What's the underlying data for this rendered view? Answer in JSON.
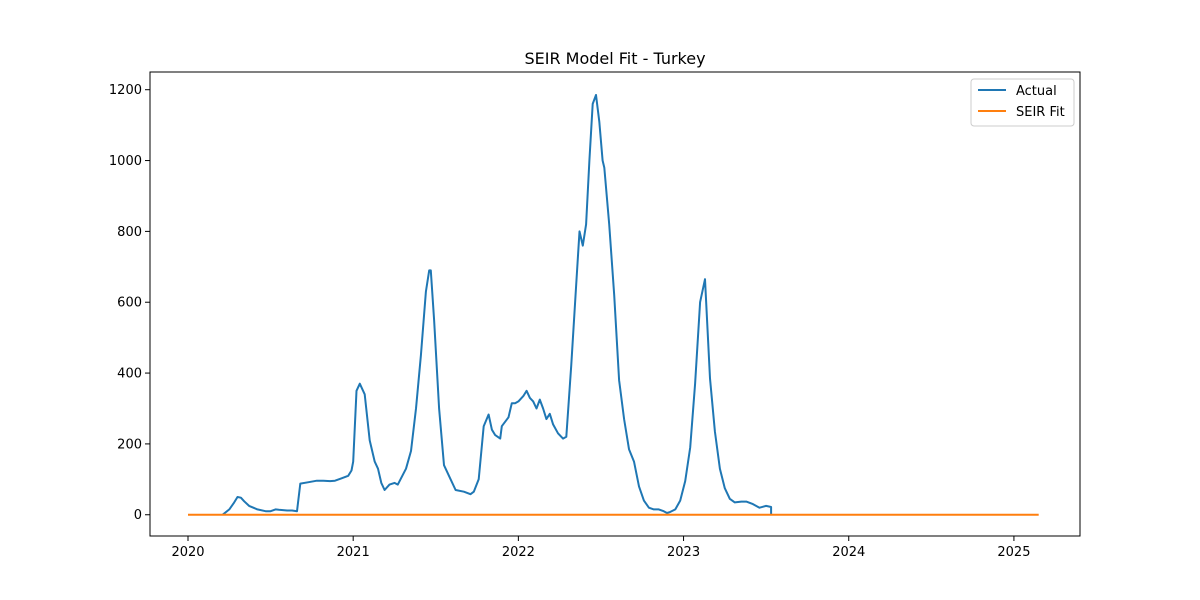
{
  "chart_data": {
    "type": "line",
    "title": "SEIR Model Fit - Turkey",
    "xlabel": "",
    "ylabel": "",
    "x_ticks": [
      "2020",
      "2021",
      "2022",
      "2023",
      "2024",
      "2025"
    ],
    "y_ticks": [
      "0",
      "200",
      "400",
      "600",
      "800",
      "1000",
      "1200"
    ],
    "xlim": [
      2019.77,
      2025.4
    ],
    "ylim": [
      -60,
      1250
    ],
    "legend_position": "top-right",
    "grid": false,
    "series": [
      {
        "name": "Actual",
        "color": "#1f77b4",
        "points": [
          [
            2020.21,
            0
          ],
          [
            2020.25,
            15
          ],
          [
            2020.28,
            35
          ],
          [
            2020.3,
            50
          ],
          [
            2020.32,
            48
          ],
          [
            2020.34,
            38
          ],
          [
            2020.37,
            25
          ],
          [
            2020.42,
            15
          ],
          [
            2020.47,
            10
          ],
          [
            2020.5,
            10
          ],
          [
            2020.53,
            15
          ],
          [
            2020.55,
            14
          ],
          [
            2020.6,
            12
          ],
          [
            2020.63,
            12
          ],
          [
            2020.66,
            10
          ],
          [
            2020.68,
            88
          ],
          [
            2020.73,
            92
          ],
          [
            2020.78,
            96
          ],
          [
            2020.82,
            96
          ],
          [
            2020.86,
            95
          ],
          [
            2020.89,
            96
          ],
          [
            2020.93,
            103
          ],
          [
            2020.97,
            110
          ],
          [
            2020.99,
            125
          ],
          [
            2021.0,
            150
          ],
          [
            2021.02,
            350
          ],
          [
            2021.04,
            370
          ],
          [
            2021.07,
            340
          ],
          [
            2021.1,
            210
          ],
          [
            2021.13,
            150
          ],
          [
            2021.15,
            130
          ],
          [
            2021.17,
            90
          ],
          [
            2021.19,
            70
          ],
          [
            2021.22,
            85
          ],
          [
            2021.25,
            90
          ],
          [
            2021.27,
            85
          ],
          [
            2021.32,
            130
          ],
          [
            2021.35,
            180
          ],
          [
            2021.38,
            300
          ],
          [
            2021.41,
            450
          ],
          [
            2021.44,
            630
          ],
          [
            2021.46,
            690
          ],
          [
            2021.47,
            690
          ],
          [
            2021.49,
            550
          ],
          [
            2021.52,
            300
          ],
          [
            2021.55,
            140
          ],
          [
            2021.59,
            100
          ],
          [
            2021.62,
            70
          ],
          [
            2021.67,
            65
          ],
          [
            2021.71,
            58
          ],
          [
            2021.73,
            65
          ],
          [
            2021.76,
            100
          ],
          [
            2021.79,
            250
          ],
          [
            2021.82,
            283
          ],
          [
            2021.84,
            240
          ],
          [
            2021.86,
            225
          ],
          [
            2021.89,
            215
          ],
          [
            2021.9,
            250
          ],
          [
            2021.94,
            275
          ],
          [
            2021.96,
            315
          ],
          [
            2021.98,
            315
          ],
          [
            2022.0,
            320
          ],
          [
            2022.03,
            335
          ],
          [
            2022.05,
            350
          ],
          [
            2022.07,
            330
          ],
          [
            2022.09,
            320
          ],
          [
            2022.11,
            300
          ],
          [
            2022.13,
            325
          ],
          [
            2022.15,
            300
          ],
          [
            2022.17,
            270
          ],
          [
            2022.19,
            285
          ],
          [
            2022.21,
            255
          ],
          [
            2022.24,
            230
          ],
          [
            2022.27,
            215
          ],
          [
            2022.29,
            220
          ],
          [
            2022.32,
            420
          ],
          [
            2022.35,
            650
          ],
          [
            2022.37,
            800
          ],
          [
            2022.39,
            760
          ],
          [
            2022.41,
            820
          ],
          [
            2022.43,
            1000
          ],
          [
            2022.45,
            1160
          ],
          [
            2022.47,
            1185
          ],
          [
            2022.49,
            1110
          ],
          [
            2022.51,
            1000
          ],
          [
            2022.52,
            980
          ],
          [
            2022.55,
            820
          ],
          [
            2022.58,
            620
          ],
          [
            2022.61,
            380
          ],
          [
            2022.64,
            270
          ],
          [
            2022.67,
            185
          ],
          [
            2022.7,
            150
          ],
          [
            2022.73,
            80
          ],
          [
            2022.76,
            40
          ],
          [
            2022.79,
            20
          ],
          [
            2022.82,
            15
          ],
          [
            2022.85,
            15
          ],
          [
            2022.88,
            10
          ],
          [
            2022.9,
            5
          ],
          [
            2022.92,
            8
          ],
          [
            2022.95,
            15
          ],
          [
            2022.98,
            40
          ],
          [
            2023.01,
            95
          ],
          [
            2023.04,
            190
          ],
          [
            2023.07,
            370
          ],
          [
            2023.1,
            600
          ],
          [
            2023.13,
            665
          ],
          [
            2023.16,
            385
          ],
          [
            2023.19,
            235
          ],
          [
            2023.22,
            130
          ],
          [
            2023.25,
            75
          ],
          [
            2023.28,
            45
          ],
          [
            2023.31,
            35
          ],
          [
            2023.35,
            37
          ],
          [
            2023.38,
            37
          ],
          [
            2023.42,
            30
          ],
          [
            2023.46,
            20
          ],
          [
            2023.5,
            25
          ],
          [
            2023.53,
            22
          ],
          [
            2023.53,
            0
          ]
        ]
      },
      {
        "name": "SEIR Fit",
        "color": "#ff7f0e",
        "points": [
          [
            2020.0,
            0
          ],
          [
            2025.15,
            0
          ]
        ]
      }
    ]
  }
}
